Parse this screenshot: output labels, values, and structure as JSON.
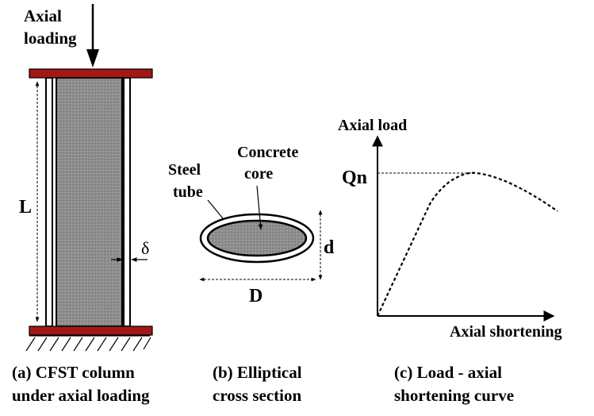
{
  "panel_a": {
    "top_label_1": "Axial",
    "top_label_2": "loading",
    "length_label": "L",
    "thickness_label": "δ",
    "caption_1": "(a) CFST column",
    "caption_2": "under axial loading",
    "colors": {
      "plate": "#a51616",
      "concrete": "#8f8f8f"
    }
  },
  "panel_b": {
    "steel_label_1": "Steel",
    "steel_label_2": "tube",
    "core_label_1": "Concrete",
    "core_label_2": "core",
    "major_label": "D",
    "minor_label": "d",
    "caption_1": "(b) Elliptical",
    "caption_2": "cross section"
  },
  "panel_c": {
    "y_axis_label": "Axial load",
    "x_axis_label": "Axial shortening",
    "peak_label": "Qn",
    "caption_1": "(c) Load - axial",
    "caption_2": "shortening curve"
  }
}
